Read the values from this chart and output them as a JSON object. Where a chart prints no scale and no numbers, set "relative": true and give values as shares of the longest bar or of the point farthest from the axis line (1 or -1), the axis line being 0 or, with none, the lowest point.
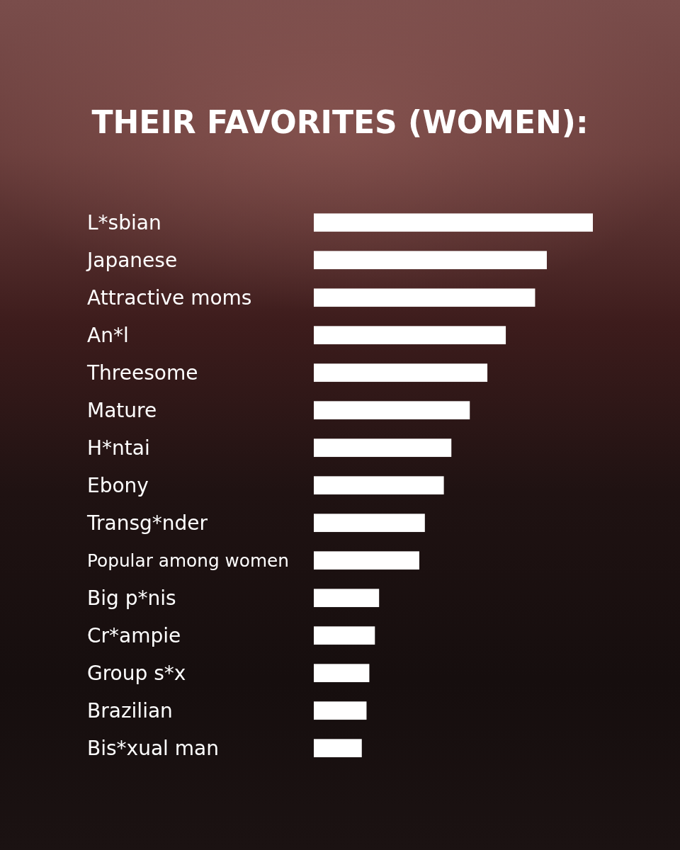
{
  "chart_data": {
    "type": "bar",
    "orientation": "horizontal",
    "relative": true,
    "title": "THEIR FAVORITES (WOMEN):",
    "categories": [
      "L*sbian",
      "Japanese",
      "Attractive moms",
      "An*l",
      "Threesome",
      "Mature",
      "H*ntai",
      "Ebony",
      "Transg*nder",
      "Popular among women",
      "Big p*nis",
      "Cr*ampie",
      "Group s*x",
      "Brazilian",
      "Bis*xual man"
    ],
    "values": [
      1,
      0.835,
      0.793,
      0.688,
      0.622,
      0.559,
      0.493,
      0.466,
      0.398,
      0.378,
      0.234,
      0.219,
      0.199,
      0.189,
      0.172
    ],
    "color": "#ffffff"
  }
}
